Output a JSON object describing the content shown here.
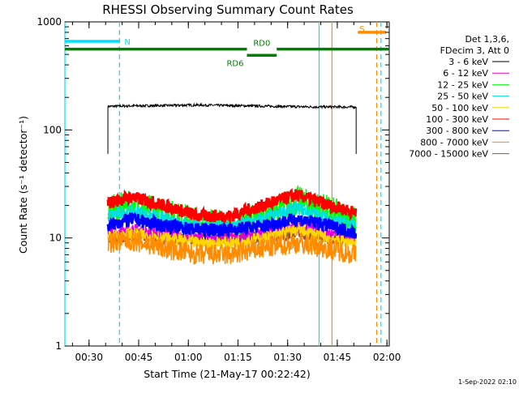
{
  "chart_data": {
    "type": "line",
    "title": "RHESSI Observing Summary Count Rates",
    "xlabel": "Start Time (21-May-17 00:22:42)",
    "ylabel": "Count Rate (s⁻¹ detector⁻¹)",
    "x_unit": "minutes since 00:22:42",
    "xlim": [
      0,
      98
    ],
    "ylim": [
      1,
      1000
    ],
    "y_scale": "log",
    "x_ticks": [
      {
        "label": "00:30",
        "value": 7.3
      },
      {
        "label": "00:45",
        "value": 22.3
      },
      {
        "label": "01:00",
        "value": 37.3
      },
      {
        "label": "01:15",
        "value": 52.3
      },
      {
        "label": "01:30",
        "value": 67.3
      },
      {
        "label": "01:45",
        "value": 82.3
      },
      {
        "label": "02:00",
        "value": 97.3
      }
    ],
    "y_ticks": [
      {
        "label": "1",
        "value": 1
      },
      {
        "label": "10",
        "value": 10
      },
      {
        "label": "100",
        "value": 100
      },
      {
        "label": "1000",
        "value": 1000
      }
    ],
    "legend_header": [
      "Det 1,3,6,",
      "FDecim 3, Att 0"
    ],
    "legend_position": "right, outside plot",
    "series": [
      {
        "name": "3 - 6 keV",
        "color": "#000000",
        "x": [
          13,
          20,
          30,
          40,
          50,
          60,
          70,
          80,
          88
        ],
        "y": [
          165,
          167,
          168,
          170,
          168,
          166,
          164,
          163,
          163
        ]
      },
      {
        "name": "6 - 12 keV",
        "color": "#e000e0",
        "x": [
          13,
          20,
          30,
          40,
          50,
          60,
          70,
          80,
          88
        ],
        "y": [
          11,
          12,
          11,
          10,
          10,
          11,
          13,
          11,
          10
        ]
      },
      {
        "name": "12 - 25 keV",
        "color": "#00ff00",
        "x": [
          13,
          20,
          30,
          40,
          50,
          60,
          70,
          80,
          88
        ],
        "y": [
          18,
          20,
          17,
          14,
          13,
          16,
          22,
          18,
          14
        ]
      },
      {
        "name": "25 - 50 keV",
        "color": "#00e0e0",
        "x": [
          13,
          20,
          30,
          40,
          50,
          60,
          70,
          80,
          88
        ],
        "y": [
          16,
          18,
          15,
          13,
          13,
          15,
          19,
          15,
          13
        ]
      },
      {
        "name": "50 - 100 keV",
        "color": "#ffd700",
        "x": [
          13,
          20,
          30,
          40,
          50,
          60,
          70,
          80,
          88
        ],
        "y": [
          10,
          11,
          10,
          9,
          9,
          10,
          12,
          10,
          9
        ]
      },
      {
        "name": "100 - 300 keV",
        "color": "#ff0000",
        "x": [
          13,
          20,
          30,
          40,
          50,
          60,
          70,
          80,
          88
        ],
        "y": [
          21,
          24,
          20,
          16,
          16,
          20,
          25,
          20,
          17
        ]
      },
      {
        "name": "300 - 800 keV",
        "color": "#0000ff",
        "x": [
          13,
          20,
          30,
          40,
          50,
          60,
          70,
          80,
          88
        ],
        "y": [
          13,
          15,
          13,
          12,
          12,
          13,
          15,
          13,
          11
        ]
      },
      {
        "name": "800 - 7000 keV",
        "color": "#ff8c00",
        "x": [
          13,
          20,
          30,
          40,
          50,
          60,
          70,
          80,
          88
        ],
        "y": [
          9,
          9.5,
          8,
          7,
          7,
          8,
          9,
          8,
          7
        ]
      },
      {
        "name": "7000 - 15000 keV",
        "color": "#a0522d",
        "x": [
          13,
          20,
          30,
          40,
          50,
          60,
          70,
          80,
          88
        ],
        "y": [
          10,
          10.5,
          10,
          10,
          10,
          10,
          11,
          10,
          10
        ]
      }
    ],
    "annotations": [
      {
        "label": "N",
        "kind": "night",
        "color": "#00e0ff",
        "x_start": 0,
        "x_end": 16.5,
        "level": 660
      },
      {
        "label": "RD0",
        "kind": "decimation",
        "color": "#008000",
        "x_start": 0,
        "x_end": 98,
        "level": 560
      },
      {
        "label": "RD6",
        "kind": "decimation",
        "color": "#008000",
        "x_start": 55,
        "x_end": 64,
        "level": 490
      },
      {
        "label": "S",
        "kind": "saa",
        "color": "#ff8c00",
        "x_start": 88.5,
        "x_end": 97,
        "level": 800
      }
    ],
    "vertical_markers": [
      {
        "x": 0,
        "color": "#00e0ff",
        "style": "solid"
      },
      {
        "x": 16.5,
        "color": "#00e0ff",
        "style": "dashed"
      },
      {
        "x": 76.8,
        "color": "#00e0ff",
        "style": "solid"
      },
      {
        "x": 95.5,
        "color": "#00e0ff",
        "style": "dashed"
      },
      {
        "x": 80.7,
        "color": "#ff8c00",
        "style": "solid"
      },
      {
        "x": 94.2,
        "color": "#ff8c00",
        "style": "dashed"
      }
    ],
    "grid": false
  },
  "footer": {
    "date": "1-Sep-2022 02:10"
  }
}
